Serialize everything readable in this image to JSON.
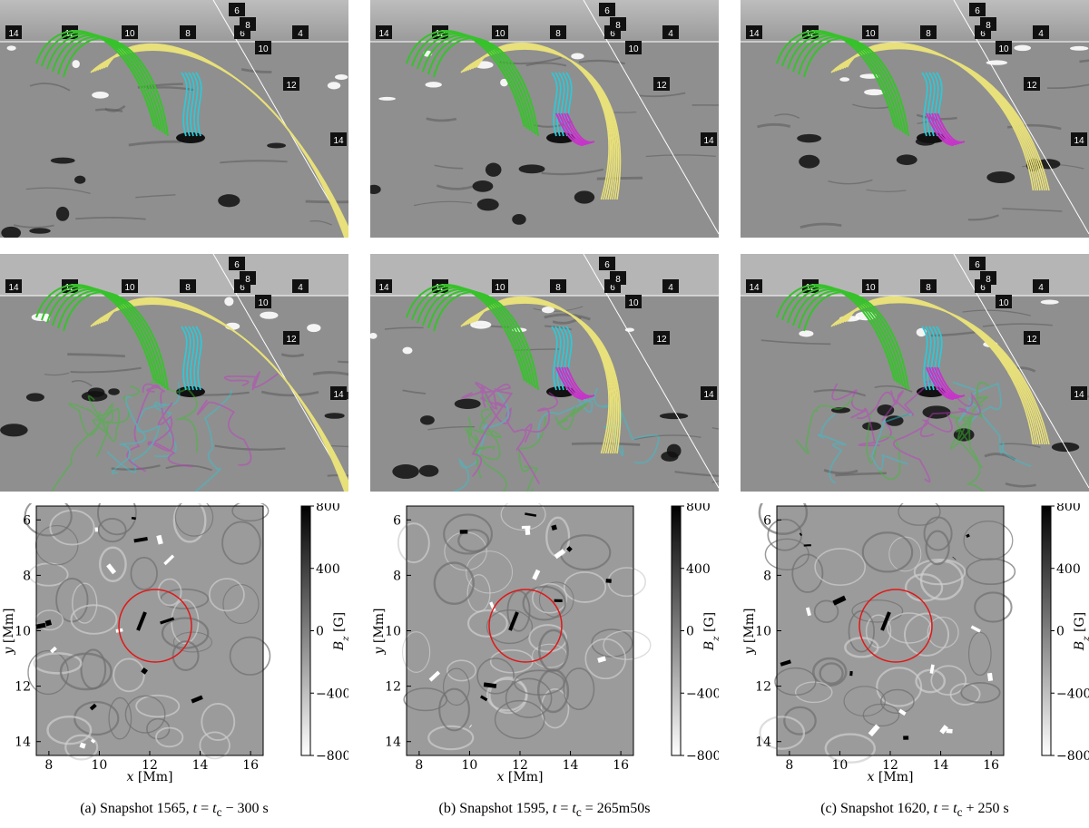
{
  "panels": [
    {
      "caption": "(a) Snapshot 1565, t = t_c − 300 s",
      "caption_parts": {
        "prefix": "(a) Snapshot 1565, ",
        "t": "t",
        "eq": " = ",
        "tc": "t",
        "sub": "c",
        "rest": " − 300 s"
      }
    },
    {
      "caption": "(b) Snapshot 1595, t = t_c = 265m50s",
      "caption_parts": {
        "prefix": "(b) Snapshot 1595, ",
        "t": "t",
        "eq": " = ",
        "tc": "t",
        "sub": "c",
        "rest": " = 265m50s"
      }
    },
    {
      "caption": "(c) Snapshot 1620, t = t_c + 250 s",
      "caption_parts": {
        "prefix": "(c) Snapshot 1620, ",
        "t": "t",
        "eq": " = ",
        "tc": "t",
        "sub": "c",
        "rest": " + 250 s"
      }
    }
  ],
  "render_labels": {
    "top_row": [
      "14",
      "12",
      "10",
      "8",
      "6",
      "4"
    ],
    "diagonal": [
      "6",
      "8",
      "10",
      "12",
      "14"
    ]
  },
  "map_axes": {
    "x_label": "x [Mm]",
    "y_label": "y [Mm]",
    "x_ticks": [
      "8",
      "10",
      "12",
      "14",
      "16"
    ],
    "y_ticks": [
      "6",
      "8",
      "10",
      "12",
      "14"
    ],
    "colorbar_label": "B_z [G]",
    "colorbar_ticks": [
      "800",
      "400",
      "0",
      "−400",
      "−800"
    ]
  },
  "colors": {
    "field_green": "#37c22b",
    "field_yellow": "#e8e07a",
    "field_cyan": "#2ec8d6",
    "field_magenta": "#c536c8",
    "circle_red": "#e01818",
    "photosphere_gray": "#8c8c8c"
  }
}
